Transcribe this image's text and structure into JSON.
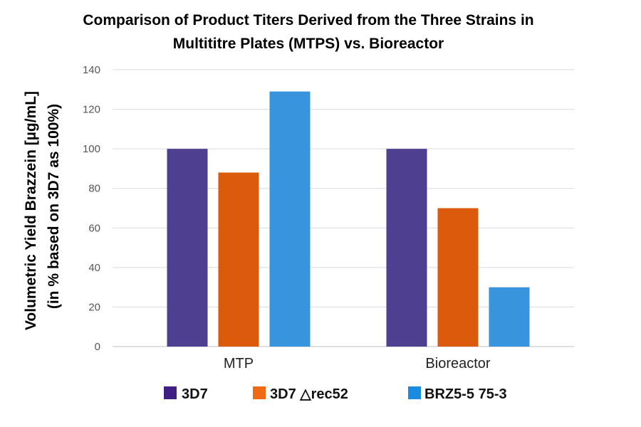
{
  "chart_data": {
    "type": "bar",
    "title": [
      "Comparison of Product Titers Derived from the Three Strains in",
      "Multititre Plates (MTPS) vs. Bioreactor"
    ],
    "ylabel": [
      "Volumetric Yield Brazzein [µg/mL]",
      "(in % based on 3D7 as 100%)"
    ],
    "xlabel": "",
    "categories": [
      "MTP",
      "Bioreactor"
    ],
    "ylim": [
      0,
      140
    ],
    "yticks": [
      0,
      20,
      40,
      60,
      80,
      100,
      120,
      140
    ],
    "grid": true,
    "legend_position": "bottom",
    "series": [
      {
        "name": "3D7",
        "color": "#4e3f91",
        "legend_color": "#3f1e86",
        "values": [
          100,
          100
        ]
      },
      {
        "name": "3D7 △rec52",
        "color": "#db5a0b",
        "legend_color": "#f06a12",
        "values": [
          88,
          70
        ]
      },
      {
        "name": "BRZ5-5 75-3",
        "color": "#3794dd",
        "legend_color": "#1a8be0",
        "values": [
          129,
          30
        ]
      }
    ]
  }
}
